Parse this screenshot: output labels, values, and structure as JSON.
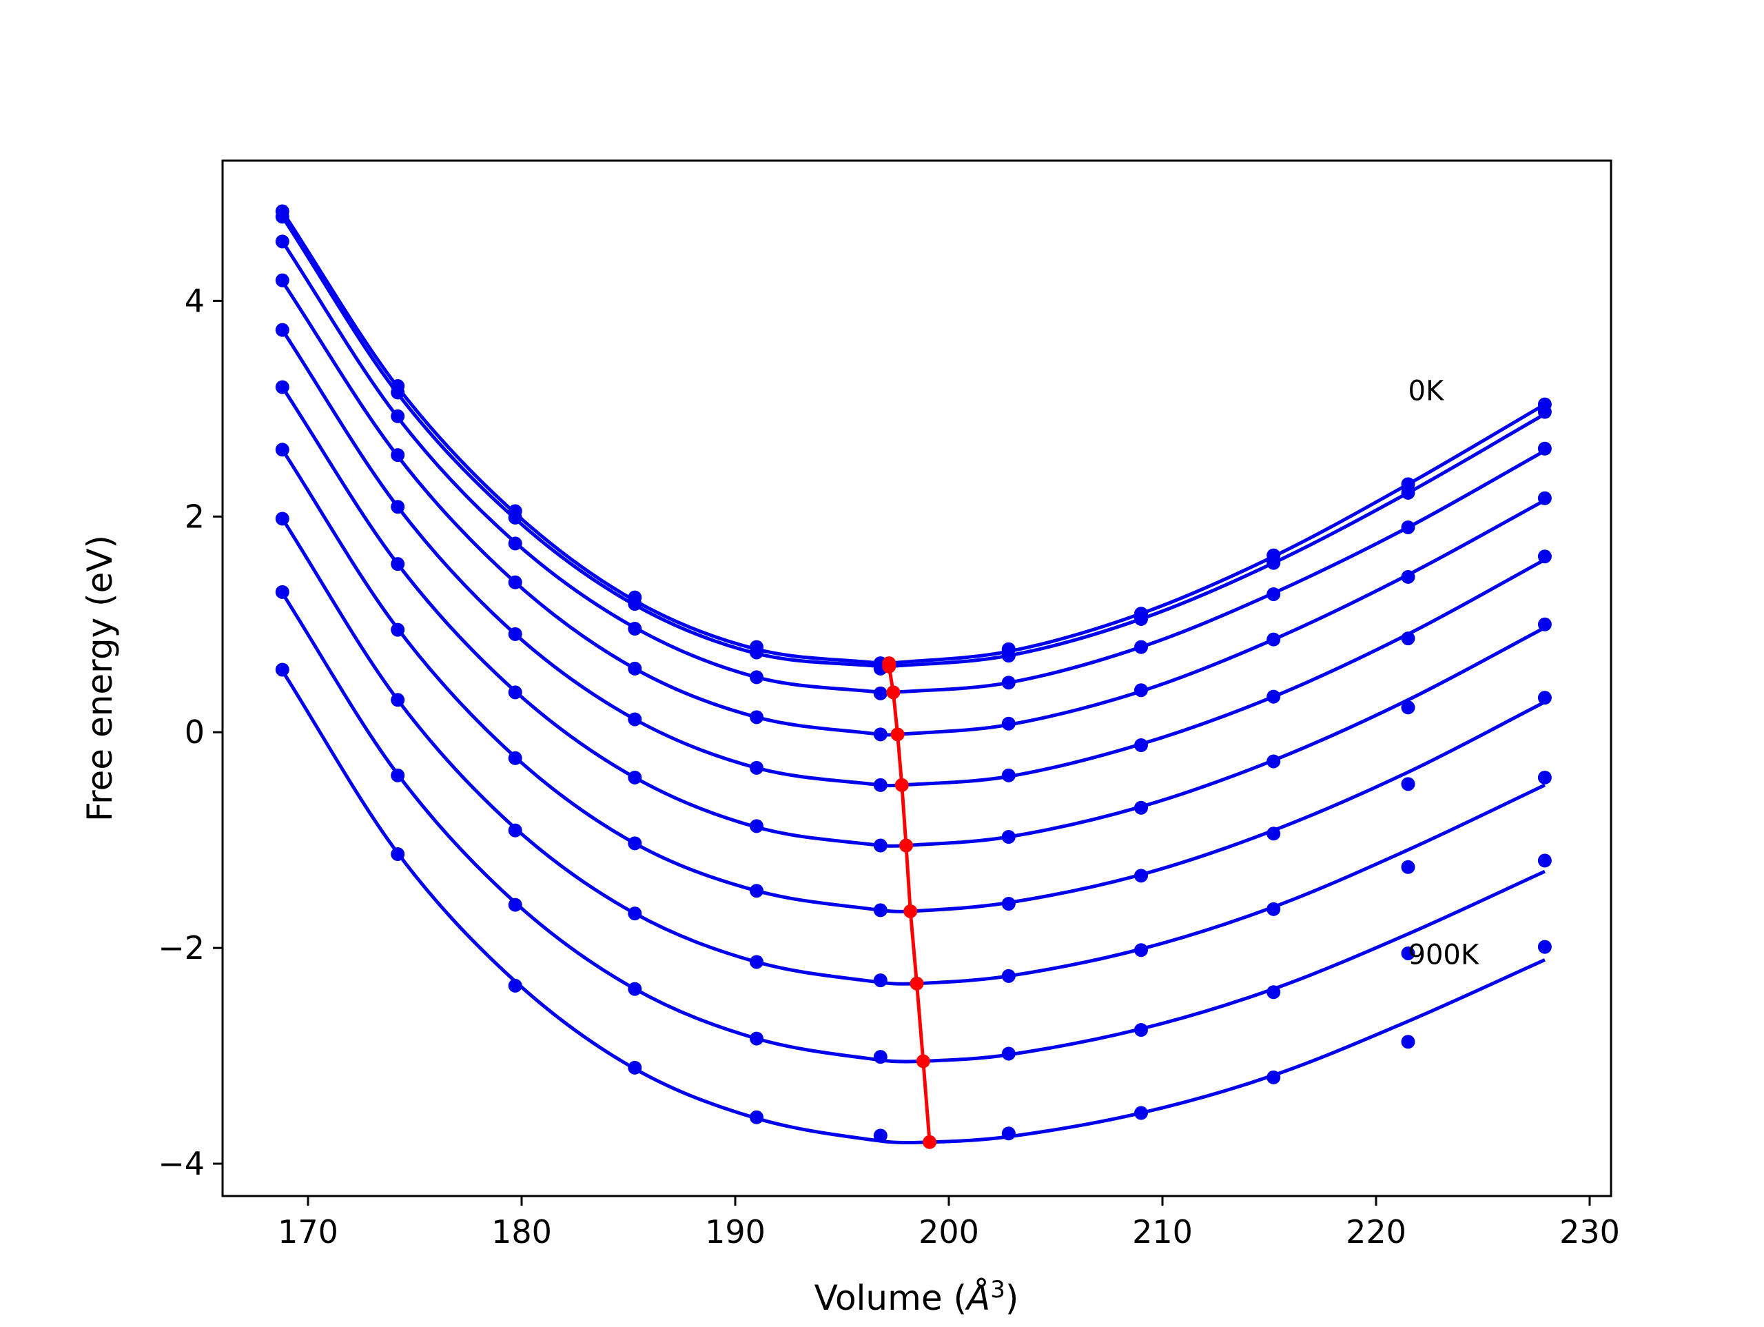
{
  "chart_data": {
    "type": "line",
    "title": "",
    "xlabel": "Volume (",
    "xlabel_unit": "Å",
    "xlabel_sup": "3",
    "xlabel_close": ")",
    "ylabel": "Free energy (eV)",
    "xlim": [
      166,
      231
    ],
    "ylim": [
      -4.3,
      5.3
    ],
    "xticks": [
      170,
      180,
      190,
      200,
      210,
      220,
      230
    ],
    "yticks": [
      -4,
      -2,
      0,
      2,
      4
    ],
    "ytick_labels": [
      "−4",
      "−2",
      "0",
      "2",
      "4"
    ],
    "grid": false,
    "legend": "none",
    "colors": {
      "curves": "#0000ee",
      "points": "#0000ee",
      "minimum_line": "#ff0000",
      "axes": "#000000"
    },
    "x_points": [
      168.8,
      174.2,
      179.7,
      185.3,
      191.0,
      196.8,
      202.8,
      209.0,
      215.2,
      221.5,
      227.9
    ],
    "series": [
      {
        "name": "0K",
        "values": [
          4.83,
          3.21,
          2.05,
          1.25,
          0.79,
          0.64,
          0.77,
          1.1,
          1.64,
          2.3,
          3.04
        ],
        "fit": [
          4.83,
          3.2,
          2.03,
          1.22,
          0.77,
          0.64,
          0.75,
          1.1,
          1.63,
          2.3,
          3.04
        ],
        "min": [
          197.2,
          0.64
        ]
      },
      {
        "values": [
          4.78,
          3.15,
          1.99,
          1.19,
          0.74,
          0.59,
          0.71,
          1.05,
          1.57,
          2.22,
          2.97
        ],
        "fit": [
          4.78,
          3.14,
          1.98,
          1.18,
          0.73,
          0.61,
          0.71,
          1.05,
          1.57,
          2.22,
          2.95
        ],
        "min": [
          197.2,
          0.61
        ]
      },
      {
        "values": [
          4.55,
          2.93,
          1.75,
          0.96,
          0.51,
          0.36,
          0.46,
          0.79,
          1.28,
          1.9,
          2.63
        ],
        "fit": [
          4.55,
          2.92,
          1.76,
          0.97,
          0.51,
          0.37,
          0.46,
          0.79,
          1.29,
          1.9,
          2.61
        ],
        "min": [
          197.4,
          0.37
        ]
      },
      {
        "values": [
          4.19,
          2.57,
          1.39,
          0.59,
          0.14,
          -0.02,
          0.08,
          0.39,
          0.86,
          1.44,
          2.17
        ],
        "fit": [
          4.18,
          2.56,
          1.39,
          0.59,
          0.14,
          -0.02,
          0.07,
          0.38,
          0.86,
          1.46,
          2.15
        ],
        "min": [
          197.6,
          -0.02
        ]
      },
      {
        "values": [
          3.73,
          2.09,
          0.91,
          0.12,
          -0.33,
          -0.49,
          -0.4,
          -0.12,
          0.33,
          0.87,
          1.63
        ],
        "fit": [
          3.73,
          2.09,
          0.91,
          0.12,
          -0.33,
          -0.49,
          -0.41,
          -0.11,
          0.33,
          0.91,
          1.6
        ],
        "min": [
          197.8,
          -0.49
        ]
      },
      {
        "values": [
          3.2,
          1.56,
          0.37,
          -0.42,
          -0.87,
          -1.05,
          -0.97,
          -0.7,
          -0.27,
          0.23,
          1.0
        ],
        "fit": [
          3.2,
          1.56,
          0.38,
          -0.42,
          -0.88,
          -1.05,
          -0.97,
          -0.69,
          -0.26,
          0.3,
          0.97
        ],
        "min": [
          198.0,
          -1.05
        ]
      },
      {
        "values": [
          2.62,
          0.95,
          -0.24,
          -1.03,
          -1.47,
          -1.65,
          -1.59,
          -1.33,
          -0.94,
          -0.48,
          0.32
        ],
        "fit": [
          2.62,
          0.96,
          -0.23,
          -1.03,
          -1.47,
          -1.65,
          -1.58,
          -1.32,
          -0.91,
          -0.37,
          0.28
        ],
        "min": [
          198.2,
          -1.66
        ]
      },
      {
        "values": [
          1.98,
          0.3,
          -0.91,
          -1.68,
          -2.13,
          -2.3,
          -2.26,
          -2.02,
          -1.64,
          -1.25,
          -0.42
        ],
        "fit": [
          1.98,
          0.3,
          -0.89,
          -1.68,
          -2.13,
          -2.32,
          -2.26,
          -2.01,
          -1.62,
          -1.09,
          -0.49
        ],
        "min": [
          198.5,
          -2.33
        ]
      },
      {
        "values": [
          1.3,
          -0.4,
          -1.6,
          -2.38,
          -2.84,
          -3.01,
          -2.98,
          -2.76,
          -2.41,
          -2.05,
          -1.19
        ],
        "fit": [
          1.29,
          -0.39,
          -1.58,
          -2.38,
          -2.84,
          -3.04,
          -2.99,
          -2.75,
          -2.38,
          -1.87,
          -1.29
        ],
        "min": [
          198.8,
          -3.05
        ]
      },
      {
        "name": "900K",
        "values": [
          0.58,
          -1.13,
          -2.35,
          -3.11,
          -3.57,
          -3.74,
          -3.72,
          -3.53,
          -3.2,
          -2.87,
          -1.99
        ],
        "fit": [
          0.57,
          -1.12,
          -2.31,
          -3.12,
          -3.58,
          -3.79,
          -3.75,
          -3.53,
          -3.18,
          -2.68,
          -2.11
        ],
        "min": [
          199.1,
          -3.8
        ]
      }
    ],
    "minimum_line": {
      "x": [
        197.2,
        197.2,
        197.4,
        197.6,
        197.8,
        198.0,
        198.2,
        198.5,
        198.8,
        199.1
      ],
      "y": [
        0.64,
        0.61,
        0.37,
        -0.02,
        -0.49,
        -1.05,
        -1.66,
        -2.33,
        -3.05,
        -3.8
      ]
    },
    "annotations": [
      {
        "text": "0K",
        "x": 221.5,
        "y": 3.17
      },
      {
        "text": "900K",
        "x": 221.5,
        "y": -2.06
      }
    ]
  }
}
